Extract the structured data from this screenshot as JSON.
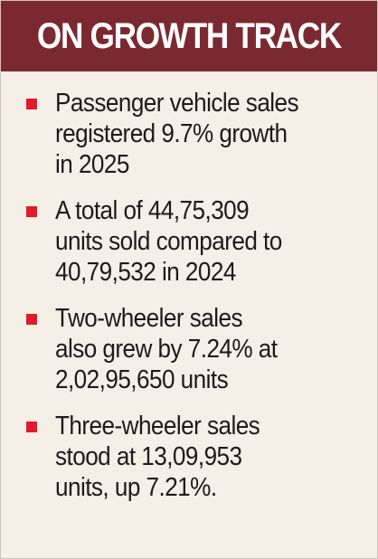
{
  "header": {
    "title": "ON GROWTH TRACK"
  },
  "bullets": [
    {
      "text": " Passenger vehicle sales\nregistered 9.7% growth\nin 2025"
    },
    {
      "text": " A total of 44,75,309\nunits sold compared to\n40,79,532 in 2024"
    },
    {
      "text": " Two-wheeler sales\nalso grew by 7.24% at\n2,02,95,650 units"
    },
    {
      "text": " Three-wheeler sales\nstood at 13,09,953\nunits, up 7.21%."
    }
  ],
  "colors": {
    "header_background": "#7b2930",
    "bullet_marker": "#e01b2a",
    "card_background": "#f6efe8"
  }
}
